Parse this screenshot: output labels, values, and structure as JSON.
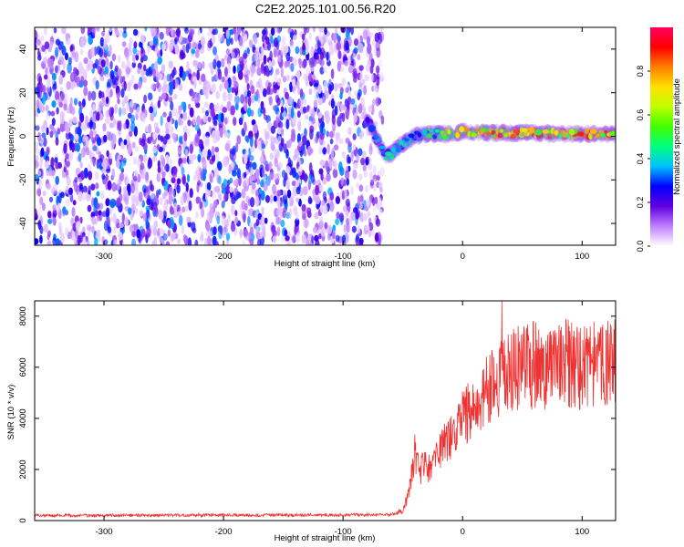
{
  "title": "C2E2.2025.101.00.56.R20",
  "colors": {
    "snr_line": "#ee3333",
    "frame": "#000000"
  },
  "chart_data": [
    {
      "type": "heatmap",
      "name": "spectrogram",
      "xlabel": "Height of straight line (km)",
      "ylabel": "Frequency (Hz)",
      "xlim": [
        -358,
        128
      ],
      "ylim": [
        -50,
        50
      ],
      "xticks": [
        -300,
        -200,
        -100,
        0,
        100
      ],
      "yticks": [
        40,
        20,
        0,
        -20,
        -40
      ],
      "noise_region": {
        "x_range": [
          -358,
          -70
        ],
        "y_range": [
          -50,
          50
        ],
        "typical_amplitude": 0.15
      },
      "cutoff_x": -70,
      "signal": {
        "description": "narrow band near 0 Hz with rising amplitude",
        "centre_freq": [
          [
            -80,
            7
          ],
          [
            -76,
            4
          ],
          [
            -72,
            -1
          ],
          [
            -68,
            -5
          ],
          [
            -64,
            -9
          ],
          [
            -60,
            -8
          ],
          [
            -56,
            -6
          ],
          [
            -52,
            -4
          ],
          [
            -48,
            -3
          ],
          [
            -44,
            -1
          ],
          [
            -40,
            0
          ],
          [
            -30,
            1
          ],
          [
            -20,
            1
          ],
          [
            -10,
            1
          ],
          [
            0,
            2
          ],
          [
            20,
            1.5
          ],
          [
            40,
            1.5
          ],
          [
            60,
            1.5
          ],
          [
            80,
            1
          ],
          [
            100,
            1
          ],
          [
            128,
            1
          ]
        ],
        "amplitude": [
          [
            -80,
            0.25
          ],
          [
            -70,
            0.35
          ],
          [
            -60,
            0.45
          ],
          [
            -50,
            0.4
          ],
          [
            -40,
            0.45
          ],
          [
            -30,
            0.5
          ],
          [
            -20,
            0.55
          ],
          [
            -10,
            0.65
          ],
          [
            0,
            0.7
          ],
          [
            20,
            0.8
          ],
          [
            40,
            0.85
          ],
          [
            60,
            0.8
          ],
          [
            80,
            0.75
          ],
          [
            100,
            0.8
          ],
          [
            128,
            0.85
          ]
        ]
      },
      "colorbar": {
        "label": "Normalized spectral amplitude",
        "range": [
          0,
          1
        ],
        "ticks": [
          0.0,
          0.2,
          0.4,
          0.6,
          0.8
        ],
        "tick_labels": [
          "0.0",
          "0.2",
          "0.4",
          "0.6",
          "0.8"
        ],
        "colors": [
          "#ffffff",
          "#c080ff",
          "#6000e0",
          "#0000ff",
          "#00c0ff",
          "#00ff80",
          "#40ff00",
          "#c0ff00",
          "#ffe000",
          "#ff8000",
          "#ff0000",
          "#ff0060"
        ]
      }
    },
    {
      "type": "line",
      "name": "snr",
      "xlabel": "Height of straight line (km)",
      "ylabel": "SNR (10 * v/v)",
      "xlim": [
        -358,
        128
      ],
      "ylim": [
        0,
        8600
      ],
      "xticks": [
        -300,
        -200,
        -100,
        0,
        100
      ],
      "yticks": [
        0,
        2000,
        4000,
        6000,
        8000
      ],
      "series": [
        {
          "name": "SNR",
          "envelope_x": [
            -358,
            -300,
            -200,
            -100,
            -60,
            -50,
            -46,
            -42,
            -40,
            -36,
            -32,
            -28,
            -24,
            -20,
            -16,
            -12,
            -8,
            -4,
            0,
            10,
            20,
            30,
            40,
            50,
            60,
            70,
            80,
            90,
            100,
            110,
            128
          ],
          "envelope_y": [
            200,
            200,
            210,
            220,
            230,
            400,
            900,
            1900,
            2700,
            1900,
            2200,
            2000,
            2300,
            2600,
            2900,
            3100,
            3400,
            3700,
            4000,
            4500,
            5000,
            5500,
            5800,
            6100,
            6100,
            5900,
            6100,
            6200,
            6000,
            6200,
            6200
          ],
          "noise_amplitude": 0.18,
          "peak_values": [
            8600,
            8400,
            8500,
            8300,
            8100,
            7800
          ]
        }
      ]
    }
  ]
}
